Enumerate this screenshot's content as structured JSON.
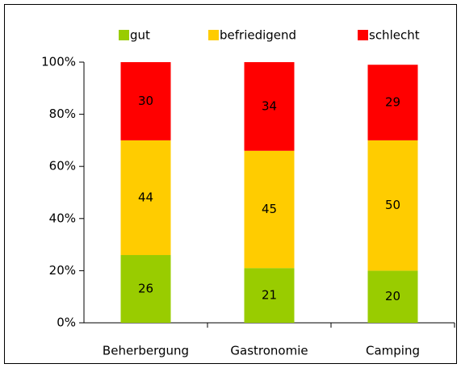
{
  "chart_data": {
    "type": "stacked-bar",
    "categories": [
      "Beherbergung",
      "Gastronomie",
      "Camping"
    ],
    "series": [
      {
        "name": "gut",
        "color": "#99cc00",
        "values": [
          26,
          21,
          20
        ]
      },
      {
        "name": "befriedigend",
        "color": "#ffcc00",
        "values": [
          44,
          45,
          50
        ]
      },
      {
        "name": "schlecht",
        "color": "#ff0000",
        "values": [
          30,
          34,
          29
        ]
      }
    ],
    "ylim": [
      0,
      100
    ],
    "yticks": [
      {
        "value": 0,
        "label": "0%"
      },
      {
        "value": 20,
        "label": "20%"
      },
      {
        "value": 40,
        "label": "40%"
      },
      {
        "value": 60,
        "label": "60%"
      },
      {
        "value": 80,
        "label": "80%"
      },
      {
        "value": 100,
        "label": "100%"
      }
    ],
    "legend": "top"
  }
}
